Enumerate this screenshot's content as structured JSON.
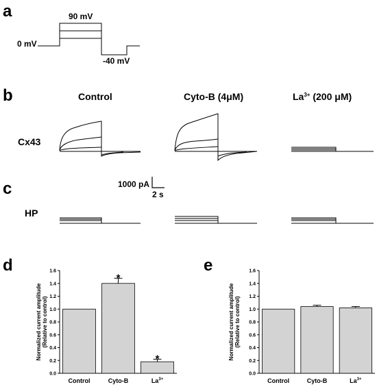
{
  "panels": {
    "a": "a",
    "b": "b",
    "c": "c",
    "d": "d",
    "e": "e"
  },
  "protocol": {
    "v_high": "90 mV",
    "v_zero": "0 mV",
    "v_neg": "-40 mV"
  },
  "conditions": {
    "control": "Control",
    "cytob": "Cyto-B (4",
    "cytob_unit": "μM)",
    "la": "La",
    "la_sup": "3+",
    "la_dose": " (200 ",
    "la_unit": "μM)"
  },
  "rows": {
    "cx43": "Cx43",
    "hp": "HP"
  },
  "scale_bar": {
    "current": "1000 pA",
    "time": "2 s"
  },
  "y_axis": {
    "line1": "Normalized current amplitude",
    "line2": "(Relative to control)"
  },
  "categories": {
    "control": "Control",
    "cytob": "Cyto-B",
    "la": "La",
    "la_sup": "3+"
  },
  "significance": "*",
  "bar_color": "#d3d3d3",
  "chart_data": [
    {
      "type": "bar",
      "panel": "d",
      "categories": [
        "Control",
        "Cyto-B",
        "La3+"
      ],
      "values": [
        1.0,
        1.4,
        0.18
      ],
      "errors": [
        0,
        0.08,
        0.04
      ],
      "significant": [
        false,
        true,
        true
      ],
      "ylabel": "Normalized current amplitude (Relative to control)",
      "ylim": [
        0,
        1.6
      ],
      "yticks": [
        "0.0",
        "0.2",
        "0.4",
        "0.6",
        "0.8",
        "1.0",
        "1.2",
        "1.4",
        "1.6"
      ]
    },
    {
      "type": "bar",
      "panel": "e",
      "categories": [
        "Control",
        "Cyto-B",
        "La3+"
      ],
      "values": [
        1.0,
        1.04,
        1.02
      ],
      "errors": [
        0,
        0.02,
        0.02
      ],
      "significant": [
        false,
        false,
        false
      ],
      "ylabel": "Normalized current amplitude (Relative to control)",
      "ylim": [
        0,
        1.6
      ],
      "yticks": [
        "0.0",
        "0.2",
        "0.4",
        "0.6",
        "0.8",
        "1.0",
        "1.2",
        "1.4",
        "1.6"
      ]
    }
  ]
}
